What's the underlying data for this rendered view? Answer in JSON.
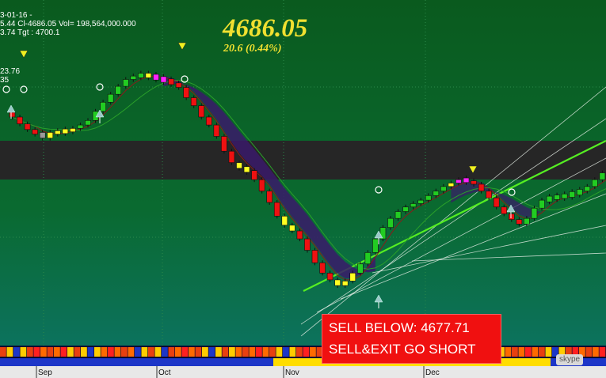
{
  "header": {
    "line1": "3-01-16 -",
    "line2": "5.44  Cl-4686.05  Vol= 198,564,000.000",
    "line3": "3.74 Tgt : 4700.1"
  },
  "price": {
    "last": "4686.05",
    "change": "20.6  (0.44%)"
  },
  "left_labels": [
    "23.76",
    "35"
  ],
  "signal_box": {
    "line1": "SELL BELOW: 4677.71",
    "line2": "SELL&EXIT GO SHORT",
    "color": "#f01010"
  },
  "watermark": {
    "label": "skype",
    "icon": "skype-badge-icon"
  },
  "colors": {
    "background_top": "#0a5a1e",
    "background_bottom": "#0c6a62",
    "band": "#262626",
    "bull": "#22cc22",
    "bear": "#ee1111",
    "neutral": "#ffff22",
    "signal": "#ff22ff"
  },
  "chart_data": {
    "type": "candlestick",
    "x_ticks": [
      "Sep",
      "Oct",
      "Nov",
      "Dec"
    ],
    "ylim": [
      4560,
      4810
    ],
    "candles": [
      {
        "c": 4735,
        "col": "red"
      },
      {
        "c": 4729,
        "col": "red"
      },
      {
        "c": 4724,
        "col": "red"
      },
      {
        "c": 4720,
        "col": "red"
      },
      {
        "c": 4718,
        "col": "gray"
      },
      {
        "c": 4720,
        "col": "yellow"
      },
      {
        "c": 4723,
        "col": "yellow"
      },
      {
        "c": 4722,
        "col": "yellow"
      },
      {
        "c": 4725,
        "col": "yellow"
      },
      {
        "c": 4728,
        "col": "green"
      },
      {
        "c": 4732,
        "col": "green"
      },
      {
        "c": 4740,
        "col": "green"
      },
      {
        "c": 4748,
        "col": "green"
      },
      {
        "c": 4755,
        "col": "green"
      },
      {
        "c": 4762,
        "col": "green"
      },
      {
        "c": 4768,
        "col": "green"
      },
      {
        "c": 4771,
        "col": "green"
      },
      {
        "c": 4772,
        "col": "green"
      },
      {
        "c": 4771,
        "col": "yellow"
      },
      {
        "c": 4769,
        "col": "magenta"
      },
      {
        "c": 4767,
        "col": "magenta"
      },
      {
        "c": 4765,
        "col": "red"
      },
      {
        "c": 4761,
        "col": "red"
      },
      {
        "c": 4752,
        "col": "red"
      },
      {
        "c": 4745,
        "col": "red"
      },
      {
        "c": 4735,
        "col": "red"
      },
      {
        "c": 4728,
        "col": "red"
      },
      {
        "c": 4718,
        "col": "red"
      },
      {
        "c": 4705,
        "col": "red"
      },
      {
        "c": 4695,
        "col": "red"
      },
      {
        "c": 4690,
        "col": "yellow"
      },
      {
        "c": 4688,
        "col": "yellow"
      },
      {
        "c": 4680,
        "col": "red"
      },
      {
        "c": 4670,
        "col": "red"
      },
      {
        "c": 4660,
        "col": "red"
      },
      {
        "c": 4648,
        "col": "red"
      },
      {
        "c": 4640,
        "col": "yellow"
      },
      {
        "c": 4635,
        "col": "yellow"
      },
      {
        "c": 4628,
        "col": "red"
      },
      {
        "c": 4618,
        "col": "red"
      },
      {
        "c": 4607,
        "col": "red"
      },
      {
        "c": 4598,
        "col": "red"
      },
      {
        "c": 4592,
        "col": "red"
      },
      {
        "c": 4587,
        "col": "yellow"
      },
      {
        "c": 4591,
        "col": "yellow"
      },
      {
        "c": 4598,
        "col": "yellow"
      },
      {
        "c": 4606,
        "col": "green"
      },
      {
        "c": 4616,
        "col": "green"
      },
      {
        "c": 4628,
        "col": "green"
      },
      {
        "c": 4638,
        "col": "green"
      },
      {
        "c": 4646,
        "col": "green"
      },
      {
        "c": 4652,
        "col": "green"
      },
      {
        "c": 4656,
        "col": "green"
      },
      {
        "c": 4659,
        "col": "green"
      },
      {
        "c": 4662,
        "col": "green"
      },
      {
        "c": 4666,
        "col": "green"
      },
      {
        "c": 4670,
        "col": "green"
      },
      {
        "c": 4674,
        "col": "green"
      },
      {
        "c": 4677,
        "col": "yellow"
      },
      {
        "c": 4680,
        "col": "magenta"
      },
      {
        "c": 4679,
        "col": "magenta"
      },
      {
        "c": 4676,
        "col": "red"
      },
      {
        "c": 4670,
        "col": "red"
      },
      {
        "c": 4664,
        "col": "red"
      },
      {
        "c": 4656,
        "col": "red"
      },
      {
        "c": 4650,
        "col": "red"
      },
      {
        "c": 4645,
        "col": "red"
      },
      {
        "c": 4641,
        "col": "red"
      },
      {
        "c": 4646,
        "col": "green"
      },
      {
        "c": 4655,
        "col": "green"
      },
      {
        "c": 4662,
        "col": "green"
      },
      {
        "c": 4664,
        "col": "green"
      },
      {
        "c": 4665,
        "col": "green"
      },
      {
        "c": 4666,
        "col": "green"
      },
      {
        "c": 4668,
        "col": "green"
      },
      {
        "c": 4670,
        "col": "green"
      },
      {
        "c": 4674,
        "col": "green"
      },
      {
        "c": 4680,
        "col": "green"
      },
      {
        "c": 4686,
        "col": "green"
      },
      {
        "c": 4690,
        "col": "green"
      }
    ]
  }
}
